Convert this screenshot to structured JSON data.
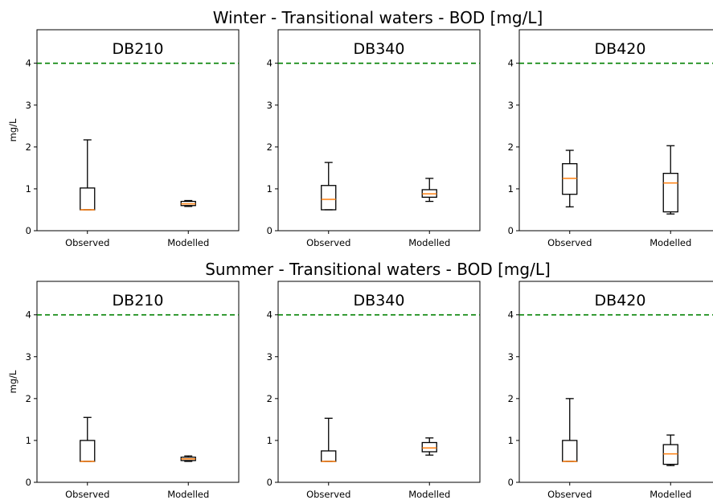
{
  "figure": {
    "row_titles": [
      "Winter - Transitional waters - BOD [mg/L]",
      "Summer - Transitional waters - BOD [mg/L]"
    ],
    "y_axis_label": "mg/L",
    "colors": {
      "box": "#000000",
      "median": "#ff7f0e",
      "threshold": "#008000"
    }
  },
  "chart_data": [
    {
      "type": "box",
      "title": "DB210",
      "season": "Winter",
      "ylabel": "mg/L",
      "ylim": [
        0,
        4.8
      ],
      "yticks": [
        0,
        1,
        2,
        3,
        4
      ],
      "threshold": 4,
      "categories": [
        "Observed",
        "Modelled"
      ],
      "boxes": [
        {
          "category": "Observed",
          "whislo": 0.5,
          "q1": 0.5,
          "med": 0.5,
          "q3": 1.02,
          "whishi": 2.17
        },
        {
          "category": "Modelled",
          "whislo": 0.58,
          "q1": 0.6,
          "med": 0.64,
          "q3": 0.7,
          "whishi": 0.72
        }
      ]
    },
    {
      "type": "box",
      "title": "DB340",
      "season": "Winter",
      "ylabel": "",
      "ylim": [
        0,
        4.8
      ],
      "yticks": [
        0,
        1,
        2,
        3,
        4
      ],
      "threshold": 4,
      "categories": [
        "Observed",
        "Modelled"
      ],
      "boxes": [
        {
          "category": "Observed",
          "whislo": 0.5,
          "q1": 0.5,
          "med": 0.75,
          "q3": 1.08,
          "whishi": 1.63
        },
        {
          "category": "Modelled",
          "whislo": 0.7,
          "q1": 0.8,
          "med": 0.88,
          "q3": 0.98,
          "whishi": 1.25
        }
      ]
    },
    {
      "type": "box",
      "title": "DB420",
      "season": "Winter",
      "ylabel": "",
      "ylim": [
        0,
        4.8
      ],
      "yticks": [
        0,
        1,
        2,
        3,
        4
      ],
      "threshold": 4,
      "categories": [
        "Observed",
        "Modelled"
      ],
      "boxes": [
        {
          "category": "Observed",
          "whislo": 0.57,
          "q1": 0.87,
          "med": 1.25,
          "q3": 1.6,
          "whishi": 1.92
        },
        {
          "category": "Modelled",
          "whislo": 0.4,
          "q1": 0.45,
          "med": 1.14,
          "q3": 1.37,
          "whishi": 2.03
        }
      ]
    },
    {
      "type": "box",
      "title": "DB210",
      "season": "Summer",
      "ylabel": "mg/L",
      "ylim": [
        0,
        4.8
      ],
      "yticks": [
        0,
        1,
        2,
        3,
        4
      ],
      "threshold": 4,
      "categories": [
        "Observed",
        "Modelled"
      ],
      "boxes": [
        {
          "category": "Observed",
          "whislo": 0.5,
          "q1": 0.5,
          "med": 0.5,
          "q3": 1.0,
          "whishi": 1.55
        },
        {
          "category": "Modelled",
          "whislo": 0.5,
          "q1": 0.52,
          "med": 0.56,
          "q3": 0.6,
          "whishi": 0.63
        }
      ]
    },
    {
      "type": "box",
      "title": "DB340",
      "season": "Summer",
      "ylabel": "",
      "ylim": [
        0,
        4.8
      ],
      "yticks": [
        0,
        1,
        2,
        3,
        4
      ],
      "threshold": 4,
      "categories": [
        "Observed",
        "Modelled"
      ],
      "boxes": [
        {
          "category": "Observed",
          "whislo": 0.5,
          "q1": 0.5,
          "med": 0.5,
          "q3": 0.75,
          "whishi": 1.53
        },
        {
          "category": "Modelled",
          "whislo": 0.65,
          "q1": 0.73,
          "med": 0.82,
          "q3": 0.95,
          "whishi": 1.06
        }
      ]
    },
    {
      "type": "box",
      "title": "DB420",
      "season": "Summer",
      "ylabel": "",
      "ylim": [
        0,
        4.8
      ],
      "yticks": [
        0,
        1,
        2,
        3,
        4
      ],
      "threshold": 4,
      "categories": [
        "Observed",
        "Modelled"
      ],
      "boxes": [
        {
          "category": "Observed",
          "whislo": 0.5,
          "q1": 0.5,
          "med": 0.5,
          "q3": 1.0,
          "whishi": 2.0
        },
        {
          "category": "Modelled",
          "whislo": 0.4,
          "q1": 0.43,
          "med": 0.68,
          "q3": 0.9,
          "whishi": 1.13
        }
      ]
    }
  ]
}
